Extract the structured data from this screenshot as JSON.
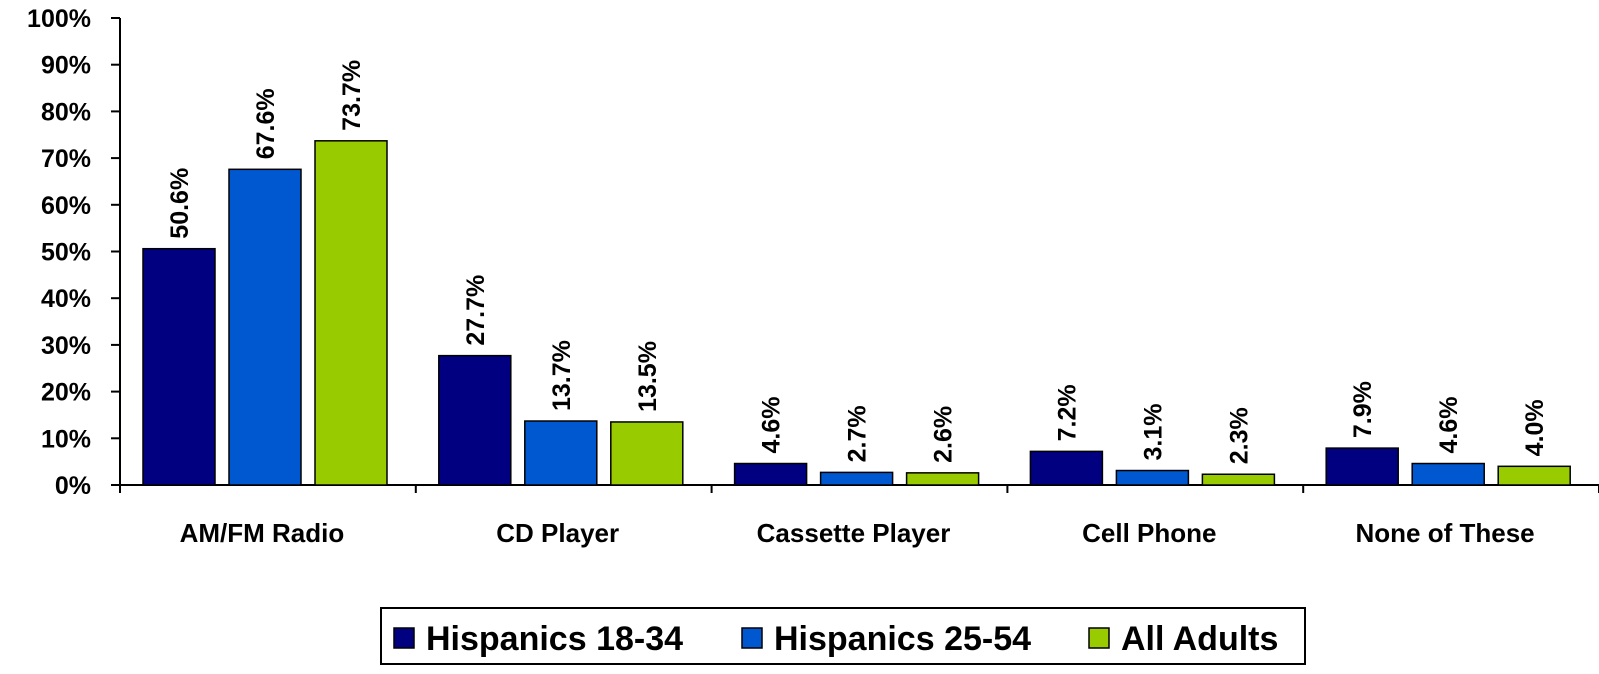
{
  "chart_data": {
    "type": "bar",
    "title": "",
    "xlabel": "",
    "ylabel": "",
    "categories": [
      "AM/FM Radio",
      "CD Player",
      "Cassette Player",
      "Cell Phone",
      "None of These"
    ],
    "series": [
      {
        "name": "Hispanics 18-34",
        "color": "#000080",
        "values": [
          50.6,
          27.7,
          4.6,
          7.2,
          7.9
        ]
      },
      {
        "name": "Hispanics 25-54",
        "color": "#0058D0",
        "values": [
          67.6,
          13.7,
          2.7,
          3.1,
          4.6
        ]
      },
      {
        "name": "All Adults",
        "color": "#99CC00",
        "values": [
          73.7,
          13.5,
          2.6,
          2.3,
          4.0
        ]
      }
    ],
    "ylim": [
      0,
      100
    ],
    "yticks": [
      0,
      10,
      20,
      30,
      40,
      50,
      60,
      70,
      80,
      90,
      100
    ],
    "value_format": "percent_1dp",
    "grid": false,
    "legend_position": "bottom"
  }
}
